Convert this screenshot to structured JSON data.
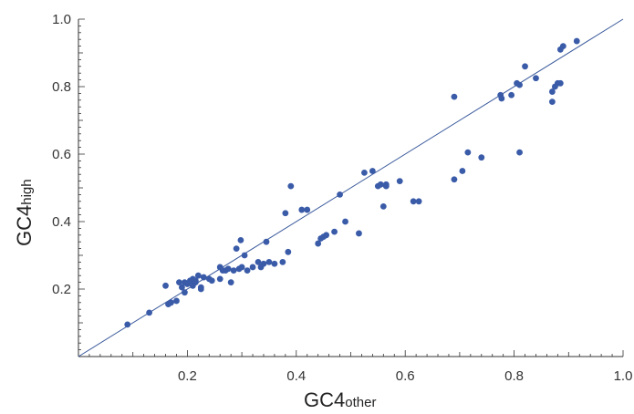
{
  "chart_data": {
    "type": "scatter",
    "xlabel": {
      "main": "GC4",
      "sub": "other"
    },
    "ylabel": {
      "main": "GC4",
      "sub": "high"
    },
    "xlim": [
      0,
      1.0
    ],
    "ylim": [
      0,
      1.0
    ],
    "x_ticks": [
      0.2,
      0.4,
      0.6,
      0.8,
      1.0
    ],
    "x_tick_labels": [
      "0.2",
      "0.4",
      "0.6",
      "0.8",
      "1.0"
    ],
    "y_ticks": [
      0.2,
      0.4,
      0.6,
      0.8,
      1.0
    ],
    "y_tick_labels": [
      "0.2",
      "0.4",
      "0.6",
      "0.8",
      "1.0"
    ],
    "reference_line": {
      "x": [
        0,
        1.0
      ],
      "y": [
        0,
        1.0
      ]
    },
    "grid": false,
    "colors": {
      "points": "#3a5ba8",
      "line": "#3b5a9c",
      "axis": "#333333"
    },
    "points": [
      [
        0.09,
        0.095
      ],
      [
        0.13,
        0.13
      ],
      [
        0.16,
        0.21
      ],
      [
        0.165,
        0.155
      ],
      [
        0.17,
        0.16
      ],
      [
        0.18,
        0.165
      ],
      [
        0.185,
        0.22
      ],
      [
        0.19,
        0.205
      ],
      [
        0.195,
        0.19
      ],
      [
        0.195,
        0.22
      ],
      [
        0.2,
        0.215
      ],
      [
        0.205,
        0.225
      ],
      [
        0.21,
        0.21
      ],
      [
        0.21,
        0.23
      ],
      [
        0.215,
        0.22
      ],
      [
        0.215,
        0.225
      ],
      [
        0.22,
        0.24
      ],
      [
        0.225,
        0.205
      ],
      [
        0.225,
        0.2
      ],
      [
        0.23,
        0.235
      ],
      [
        0.24,
        0.23
      ],
      [
        0.245,
        0.225
      ],
      [
        0.26,
        0.23
      ],
      [
        0.26,
        0.265
      ],
      [
        0.265,
        0.255
      ],
      [
        0.27,
        0.255
      ],
      [
        0.275,
        0.26
      ],
      [
        0.28,
        0.22
      ],
      [
        0.285,
        0.255
      ],
      [
        0.29,
        0.32
      ],
      [
        0.295,
        0.26
      ],
      [
        0.298,
        0.345
      ],
      [
        0.3,
        0.265
      ],
      [
        0.305,
        0.3
      ],
      [
        0.31,
        0.255
      ],
      [
        0.32,
        0.265
      ],
      [
        0.33,
        0.28
      ],
      [
        0.335,
        0.265
      ],
      [
        0.34,
        0.275
      ],
      [
        0.345,
        0.34
      ],
      [
        0.35,
        0.28
      ],
      [
        0.36,
        0.275
      ],
      [
        0.375,
        0.28
      ],
      [
        0.38,
        0.425
      ],
      [
        0.385,
        0.31
      ],
      [
        0.39,
        0.505
      ],
      [
        0.41,
        0.435
      ],
      [
        0.42,
        0.435
      ],
      [
        0.44,
        0.335
      ],
      [
        0.445,
        0.35
      ],
      [
        0.45,
        0.355
      ],
      [
        0.455,
        0.36
      ],
      [
        0.47,
        0.37
      ],
      [
        0.48,
        0.48
      ],
      [
        0.49,
        0.4
      ],
      [
        0.515,
        0.365
      ],
      [
        0.525,
        0.545
      ],
      [
        0.54,
        0.55
      ],
      [
        0.55,
        0.505
      ],
      [
        0.555,
        0.51
      ],
      [
        0.56,
        0.445
      ],
      [
        0.565,
        0.505
      ],
      [
        0.565,
        0.51
      ],
      [
        0.59,
        0.52
      ],
      [
        0.615,
        0.46
      ],
      [
        0.625,
        0.46
      ],
      [
        0.69,
        0.525
      ],
      [
        0.69,
        0.77
      ],
      [
        0.705,
        0.55
      ],
      [
        0.715,
        0.605
      ],
      [
        0.74,
        0.59
      ],
      [
        0.775,
        0.775
      ],
      [
        0.777,
        0.765
      ],
      [
        0.795,
        0.775
      ],
      [
        0.805,
        0.81
      ],
      [
        0.81,
        0.805
      ],
      [
        0.81,
        0.605
      ],
      [
        0.82,
        0.86
      ],
      [
        0.84,
        0.825
      ],
      [
        0.87,
        0.755
      ],
      [
        0.87,
        0.785
      ],
      [
        0.875,
        0.8
      ],
      [
        0.88,
        0.81
      ],
      [
        0.885,
        0.81
      ],
      [
        0.885,
        0.91
      ],
      [
        0.89,
        0.92
      ],
      [
        0.915,
        0.935
      ]
    ]
  }
}
